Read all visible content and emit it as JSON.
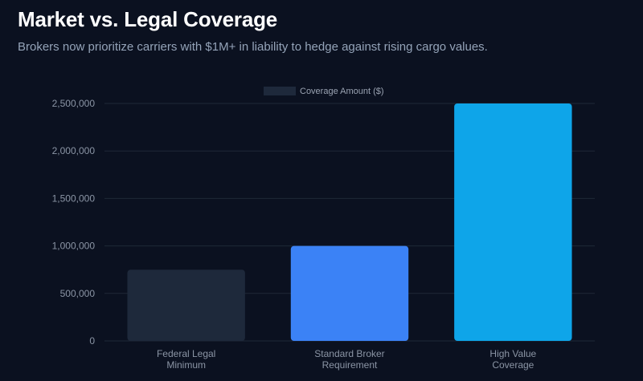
{
  "header": {
    "title": "Market vs. Legal Coverage",
    "subtitle": "Brokers now prioritize carriers with $1M+ in liability to hedge against rising cargo values."
  },
  "chart_data": {
    "type": "bar",
    "categories": [
      [
        "Federal Legal",
        "Minimum"
      ],
      [
        "Standard Broker",
        "Requirement"
      ],
      [
        "High Value",
        "Coverage"
      ]
    ],
    "series": [
      {
        "name": "Coverage Amount ($)",
        "values": [
          750000,
          1000000,
          2500000
        ],
        "colors": [
          "#1e293b",
          "#3b82f6",
          "#0ea5e9"
        ]
      }
    ],
    "y_ticks": [
      "0",
      "500,000",
      "1,000,000",
      "1,500,000",
      "2,000,000",
      "2,500,000"
    ],
    "ylim": [
      0,
      2500000
    ],
    "legend_position": "top-center",
    "legend_color": "#1e293b",
    "grid": true,
    "grid_color": "#1f2937",
    "background": "#0b1120"
  }
}
